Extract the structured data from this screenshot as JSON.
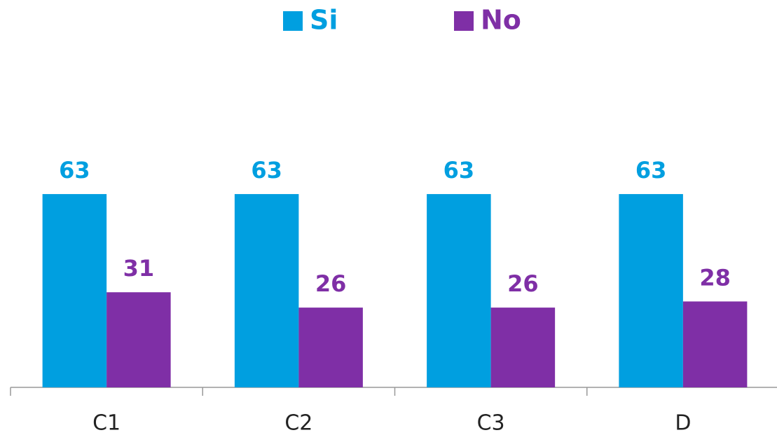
{
  "chart_data": {
    "type": "bar",
    "categories": [
      "C1",
      "C2",
      "C3",
      "D"
    ],
    "series": [
      {
        "name": "Si",
        "color": "#009fe0",
        "values": [
          63,
          63,
          63,
          63
        ]
      },
      {
        "name": "No",
        "color": "#7f2fa6",
        "values": [
          31,
          26,
          26,
          28
        ]
      }
    ],
    "legend": "top"
  }
}
